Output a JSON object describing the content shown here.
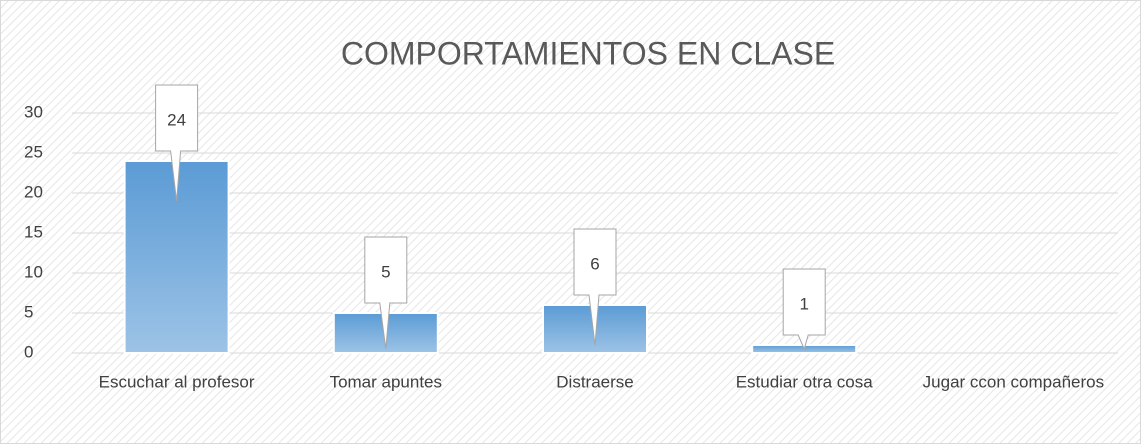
{
  "chart_data": {
    "type": "bar",
    "title": "COMPORTAMIENTOS EN CLASE",
    "categories": [
      "Escuchar al profesor",
      "Tomar apuntes",
      "Distraerse",
      "Estudiar otra cosa",
      "Jugar ccon compañeros"
    ],
    "values": [
      24,
      5,
      6,
      1,
      null
    ],
    "color": "#5b9bd5",
    "ylim": [
      0,
      30
    ],
    "yticks": [
      0,
      5,
      10,
      15,
      20,
      25,
      30
    ],
    "grid": true
  }
}
